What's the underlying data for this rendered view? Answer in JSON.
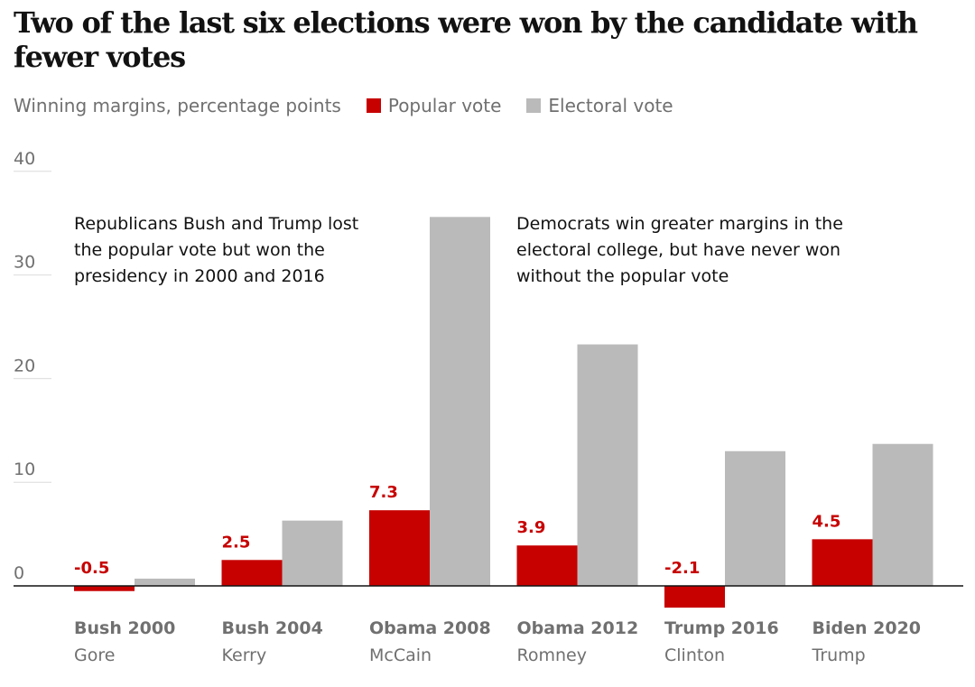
{
  "colors": {
    "popular": "#c70000",
    "electoral": "#bababa",
    "grid": "#dcdcdc",
    "axis": "#121212",
    "text_muted": "#707070"
  },
  "chart_data": {
    "type": "bar",
    "title": "Two of the last six elections were won by the candidate with fewer votes",
    "subtitle": "Winning margins, percentage points",
    "xlabel": "",
    "ylabel": "Winning margins, percentage points",
    "ylim": [
      -3,
      40
    ],
    "yticks": [
      0,
      10,
      20,
      30,
      40
    ],
    "grid": true,
    "legend_position": "top-left",
    "categories": [
      "Bush 2000",
      "Bush 2004",
      "Obama 2008",
      "Obama 2012",
      "Trump 2016",
      "Biden 2020"
    ],
    "opponents": [
      "Gore",
      "Kerry",
      "McCain",
      "Romney",
      "Clinton",
      "Trump"
    ],
    "series": [
      {
        "name": "Popular vote",
        "color": "#c70000",
        "values": [
          -0.5,
          2.5,
          7.3,
          3.9,
          -2.1,
          4.5
        ],
        "labels": [
          "-0.5",
          "2.5",
          "7.3",
          "3.9",
          "-2.1",
          "4.5"
        ]
      },
      {
        "name": "Electoral vote",
        "color": "#bababa",
        "values": [
          0.7,
          6.3,
          35.6,
          23.3,
          13.0,
          13.7
        ]
      }
    ],
    "annotations": [
      {
        "text": "Republicans Bush and Trump lost the popular vote but won the presidency in 2000 and 2016",
        "lines": [
          "Republicans Bush and Trump lost",
          "the popular vote but won the",
          "presidency in 2000 and 2016"
        ]
      },
      {
        "text": "Democrats win greater margins in the electoral college, but have never won without the popular vote",
        "lines": [
          "Democrats win greater margins in the",
          "electoral college, but have never won",
          "without the popular vote"
        ]
      }
    ]
  }
}
